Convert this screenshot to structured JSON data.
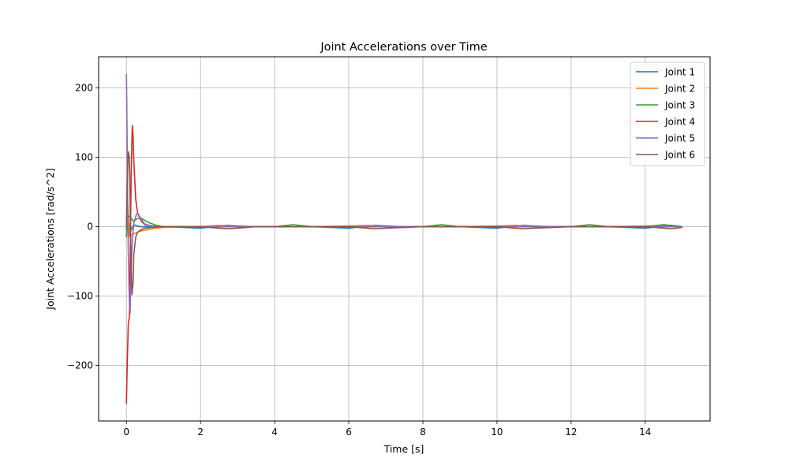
{
  "chart_data": {
    "type": "line",
    "title": "Joint Accelerations over Time",
    "xlabel": "Time [s]",
    "ylabel": "Joint Accelerations [rad/s^2]",
    "xlim": [
      -0.75,
      15.75
    ],
    "ylim": [
      -280,
      245
    ],
    "xticks": [
      0,
      2,
      4,
      6,
      8,
      10,
      12,
      14
    ],
    "xtick_labels": [
      "0",
      "2",
      "4",
      "6",
      "8",
      "10",
      "12",
      "14"
    ],
    "yticks": [
      -200,
      -100,
      0,
      100,
      200
    ],
    "ytick_labels": [
      "−200",
      "−100",
      "0",
      "100",
      "200"
    ],
    "grid": true,
    "legend_position": "top-right",
    "series": [
      {
        "name": "Joint 1",
        "color": "#1f77b4",
        "x": [
          0,
          0.02,
          0.05,
          0.1,
          0.15,
          0.2,
          0.3,
          0.4,
          0.6,
          0.8,
          1.0,
          1.5,
          2.0,
          2.5,
          2.7,
          3.0,
          3.5,
          4.0,
          4.5,
          5.0,
          5.5,
          6.0,
          6.5,
          6.7,
          7.0,
          7.5,
          8.0,
          8.5,
          9.0,
          9.5,
          10.0,
          10.5,
          10.7,
          11.0,
          11.5,
          12.0,
          12.5,
          13.0,
          13.5,
          14.0,
          14.5,
          14.7,
          15.0
        ],
        "y": [
          -5,
          20,
          10,
          -8,
          -2,
          3,
          1,
          0,
          0,
          0,
          0,
          -1,
          -2,
          1,
          2,
          1,
          0,
          0,
          0,
          0,
          -1,
          -2,
          1,
          2,
          1,
          0,
          0,
          0,
          0,
          -1,
          -2,
          1,
          2,
          1,
          0,
          0,
          0,
          0,
          -1,
          -2,
          1,
          2,
          0
        ]
      },
      {
        "name": "Joint 2",
        "color": "#ff7f0e",
        "x": [
          0,
          0.02,
          0.05,
          0.08,
          0.12,
          0.2,
          0.3,
          0.4,
          0.6,
          0.8,
          1.0,
          1.5,
          2.0,
          2.5,
          3.0,
          3.5,
          4.0,
          5.0,
          6.0,
          6.5,
          7.0,
          8.0,
          9.0,
          10.0,
          10.5,
          11.0,
          12.0,
          13.0,
          14.0,
          14.5,
          15.0
        ],
        "y": [
          0,
          45,
          20,
          -15,
          -12,
          -10,
          -8,
          -6,
          -4,
          -2,
          -1,
          0,
          0,
          2,
          0,
          0,
          0,
          0,
          1,
          2,
          0,
          0,
          0,
          1,
          2,
          0,
          0,
          0,
          1,
          2,
          0
        ]
      },
      {
        "name": "Joint 3",
        "color": "#2ca02c",
        "x": [
          0,
          0.02,
          0.05,
          0.1,
          0.15,
          0.2,
          0.3,
          0.4,
          0.5,
          0.6,
          0.8,
          1.0,
          1.5,
          2.0,
          3.0,
          4.0,
          4.5,
          5.0,
          6.0,
          7.0,
          8.0,
          8.5,
          9.0,
          10.0,
          11.0,
          12.0,
          12.5,
          13.0,
          14.0,
          14.5,
          15.0
        ],
        "y": [
          -15,
          5,
          15,
          15,
          10,
          8,
          12,
          12,
          9,
          6,
          2,
          0,
          0,
          0,
          0,
          0,
          3,
          0,
          0,
          0,
          0,
          3,
          0,
          0,
          0,
          0,
          3,
          0,
          0,
          3,
          0
        ]
      },
      {
        "name": "Joint 4",
        "color": "#d62728",
        "x": [
          0,
          0.02,
          0.05,
          0.08,
          0.1,
          0.13,
          0.16,
          0.18,
          0.2,
          0.25,
          0.3,
          0.4,
          0.5,
          0.7,
          1.0,
          1.5,
          2.0,
          3.0,
          4.0,
          6.0,
          8.0,
          10.0,
          12.0,
          14.0,
          15.0
        ],
        "y": [
          -255,
          -200,
          -140,
          -130,
          -60,
          80,
          146,
          130,
          95,
          40,
          20,
          8,
          3,
          1,
          0,
          0,
          0,
          0,
          0,
          0,
          0,
          0,
          0,
          0,
          0
        ]
      },
      {
        "name": "Joint 5",
        "color": "#9467bd",
        "x": [
          0,
          0.01,
          0.03,
          0.05,
          0.08,
          0.1,
          0.13,
          0.16,
          0.2,
          0.25,
          0.3,
          0.35,
          0.4,
          0.5,
          0.6,
          0.8,
          1.0,
          2.0,
          4.0,
          6.0,
          8.0,
          10.0,
          12.0,
          14.0,
          15.0
        ],
        "y": [
          220,
          180,
          60,
          -40,
          -110,
          -125,
          -60,
          -20,
          5,
          15,
          20,
          15,
          10,
          4,
          2,
          0,
          0,
          0,
          0,
          0,
          0,
          0,
          0,
          0,
          0
        ]
      },
      {
        "name": "Joint 6",
        "color": "#8c564b",
        "x": [
          0,
          0.02,
          0.05,
          0.08,
          0.1,
          0.12,
          0.15,
          0.18,
          0.2,
          0.25,
          0.3,
          0.4,
          0.5,
          0.7,
          1.0,
          1.5,
          2.0,
          2.5,
          2.7,
          3.0,
          3.5,
          4.0,
          5.0,
          6.0,
          6.5,
          6.7,
          7.0,
          8.0,
          9.0,
          10.0,
          10.5,
          10.7,
          11.0,
          12.0,
          13.0,
          14.0,
          14.5,
          14.7,
          15.0
        ],
        "y": [
          0,
          60,
          108,
          100,
          40,
          -40,
          -98,
          -80,
          -40,
          -15,
          -8,
          -4,
          -2,
          -1,
          0,
          0,
          0,
          -2,
          -3,
          -2,
          0,
          0,
          0,
          0,
          -2,
          -3,
          -2,
          0,
          0,
          0,
          -2,
          -3,
          -2,
          0,
          0,
          0,
          -2,
          -3,
          -1
        ]
      }
    ]
  }
}
